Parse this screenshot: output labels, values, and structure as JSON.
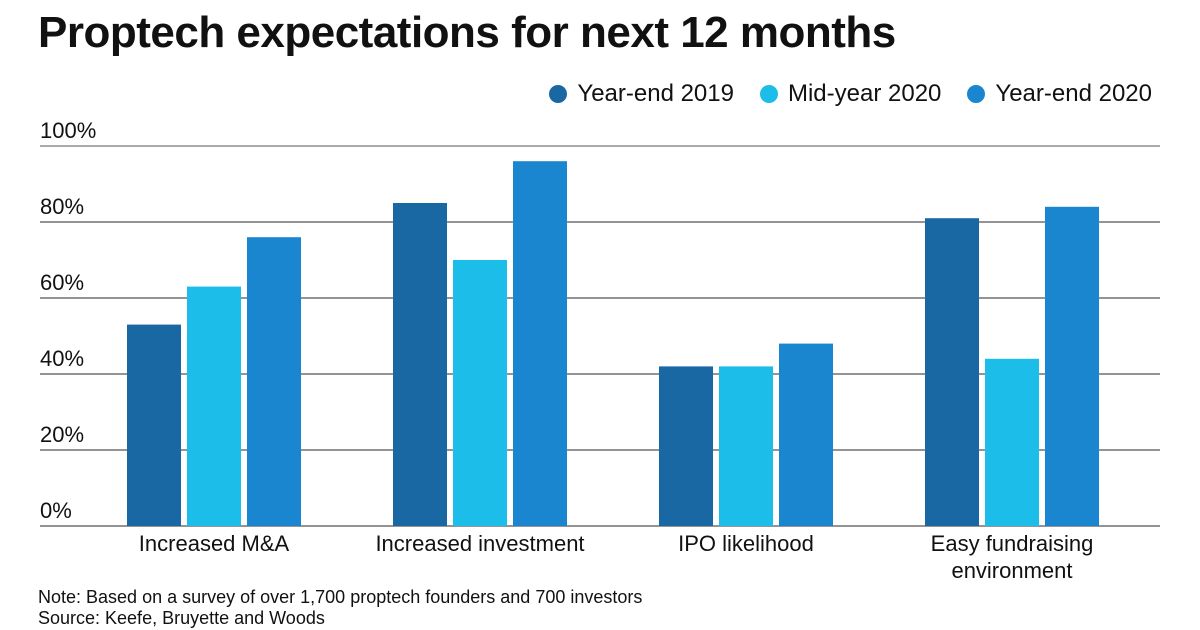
{
  "chart_data": {
    "type": "bar",
    "title": "Proptech expectations for next 12 months",
    "categories": [
      "Increased M&A",
      "Increased investment",
      "IPO likelihood",
      "Easy fundraising environment"
    ],
    "series": [
      {
        "name": "Year-end 2019",
        "color": "#1a68a3",
        "values": [
          53,
          85,
          42,
          81
        ]
      },
      {
        "name": "Mid-year 2020",
        "color": "#1cbde9",
        "values": [
          63,
          70,
          42,
          44
        ]
      },
      {
        "name": "Year-end 2020",
        "color": "#1a86d0",
        "values": [
          76,
          96,
          48,
          84
        ]
      }
    ],
    "ylim": [
      0,
      100
    ],
    "yticks": [
      "0%",
      "20%",
      "40%",
      "60%",
      "80%",
      "100%"
    ],
    "grid": true,
    "legend": "top-right"
  },
  "note": "Note: Based on a survey of over 1,700 proptech founders and 700 investors",
  "source": "Source: Keefe, Bruyette and Woods"
}
